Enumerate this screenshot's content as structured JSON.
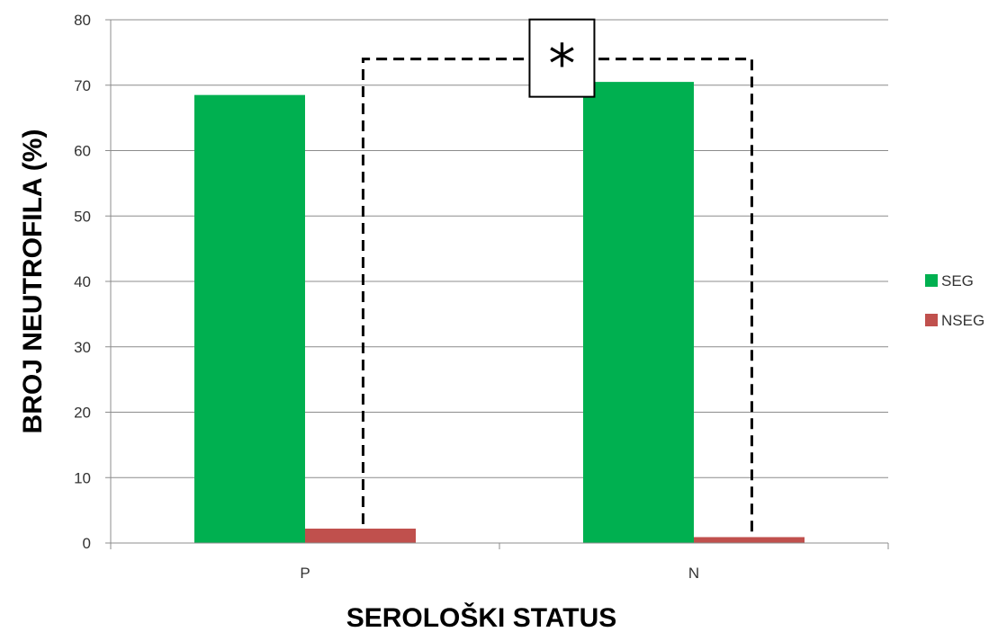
{
  "chart_data": {
    "type": "bar",
    "xlabel": "SEROLOŠKI STATUS",
    "ylabel": "BROJ NEUTROFILA (%)",
    "categories": [
      "P",
      "N"
    ],
    "series": [
      {
        "name": "SEG",
        "values": [
          68.5,
          70.5
        ],
        "color": "#00B050"
      },
      {
        "name": "NSEG",
        "values": [
          2.2,
          0.9
        ],
        "color": "#C0504D"
      }
    ],
    "ylim": [
      0,
      80
    ],
    "yticks": [
      "0",
      "10",
      "20",
      "30",
      "40",
      "50",
      "60",
      "70",
      "80"
    ],
    "grid": true,
    "legend": "right",
    "annotation": {
      "text": "*",
      "bracket_level": 74,
      "between": [
        "NSEG",
        "NSEG"
      ]
    }
  }
}
